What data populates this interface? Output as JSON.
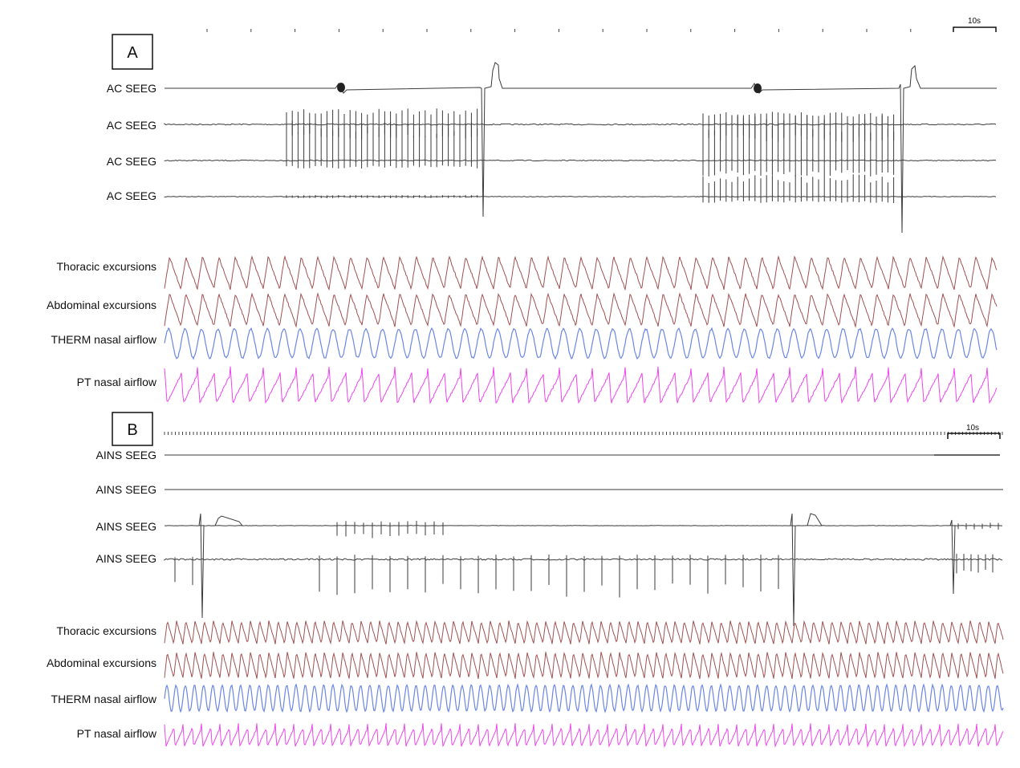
{
  "figure": {
    "panels": [
      {
        "id": "A",
        "letter": "A",
        "scale_bar": "10s",
        "channels": [
          {
            "label": "AC SEEG",
            "kind": "seeg",
            "color": "#3a3a3a"
          },
          {
            "label": "AC SEEG",
            "kind": "seeg",
            "color": "#3a3a3a"
          },
          {
            "label": "AC SEEG",
            "kind": "seeg",
            "color": "#3a3a3a"
          },
          {
            "label": "AC SEEG",
            "kind": "seeg",
            "color": "#3a3a3a"
          },
          {
            "label": "Thoracic excursions",
            "kind": "resp",
            "color": "#a05050"
          },
          {
            "label": "Abdominal excursions",
            "kind": "resp",
            "color": "#a05050"
          },
          {
            "label": "THERM nasal airflow",
            "kind": "therm",
            "color": "#6b86e6"
          },
          {
            "label": "PT nasal airflow",
            "kind": "pt",
            "color": "#ee44ee"
          }
        ]
      },
      {
        "id": "B",
        "letter": "B",
        "scale_bar": "10s",
        "channels": [
          {
            "label": "AINS SEEG",
            "kind": "seeg",
            "color": "#3a3a3a"
          },
          {
            "label": "AINS SEEG",
            "kind": "seeg",
            "color": "#3a3a3a"
          },
          {
            "label": "AINS SEEG",
            "kind": "seeg",
            "color": "#3a3a3a"
          },
          {
            "label": "AINS SEEG",
            "kind": "seeg",
            "color": "#3a3a3a"
          },
          {
            "label": "Thoracic excursions",
            "kind": "resp",
            "color": "#a05050"
          },
          {
            "label": "Abdominal excursions",
            "kind": "resp",
            "color": "#a05050"
          },
          {
            "label": "THERM nasal airflow",
            "kind": "therm",
            "color": "#6b86e6"
          },
          {
            "label": "PT nasal airflow",
            "kind": "pt",
            "color": "#ee44ee"
          }
        ]
      }
    ]
  }
}
